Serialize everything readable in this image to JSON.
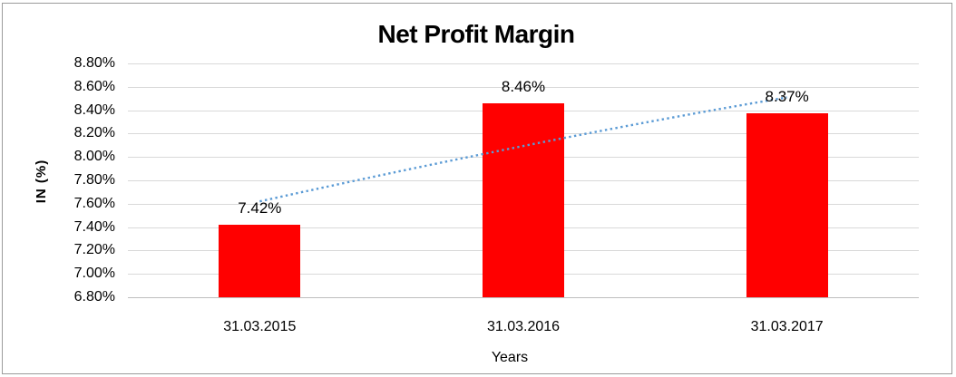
{
  "chart_data": {
    "type": "bar",
    "title": "Net Profit Margin",
    "xlabel": "Years",
    "ylabel": "IN (%)",
    "categories": [
      "31.03.2015",
      "31.03.2016",
      "31.03.2017"
    ],
    "series": [
      {
        "name": "Net Profit Margin",
        "values": [
          7.42,
          8.46,
          8.37
        ]
      }
    ],
    "data_labels": [
      "7.42%",
      "8.46%",
      "8.37%"
    ],
    "ylim": [
      6.8,
      8.8
    ],
    "ytick_step": 0.2,
    "ytick_labels": [
      "8.80%",
      "8.60%",
      "8.40%",
      "8.20%",
      "8.00%",
      "7.80%",
      "7.60%",
      "7.40%",
      "7.20%",
      "7.00%",
      "6.80%"
    ],
    "grid": true,
    "legend": "none",
    "bar_color": "#ff0000",
    "gridline_color": "#d9d9d9",
    "axis_line_color": "#bfbfbf",
    "text_color": "#000000",
    "trendline": {
      "type": "dotted-trend",
      "color": "#5b9bd5",
      "start_value": 7.62,
      "end_value": 8.51
    }
  }
}
